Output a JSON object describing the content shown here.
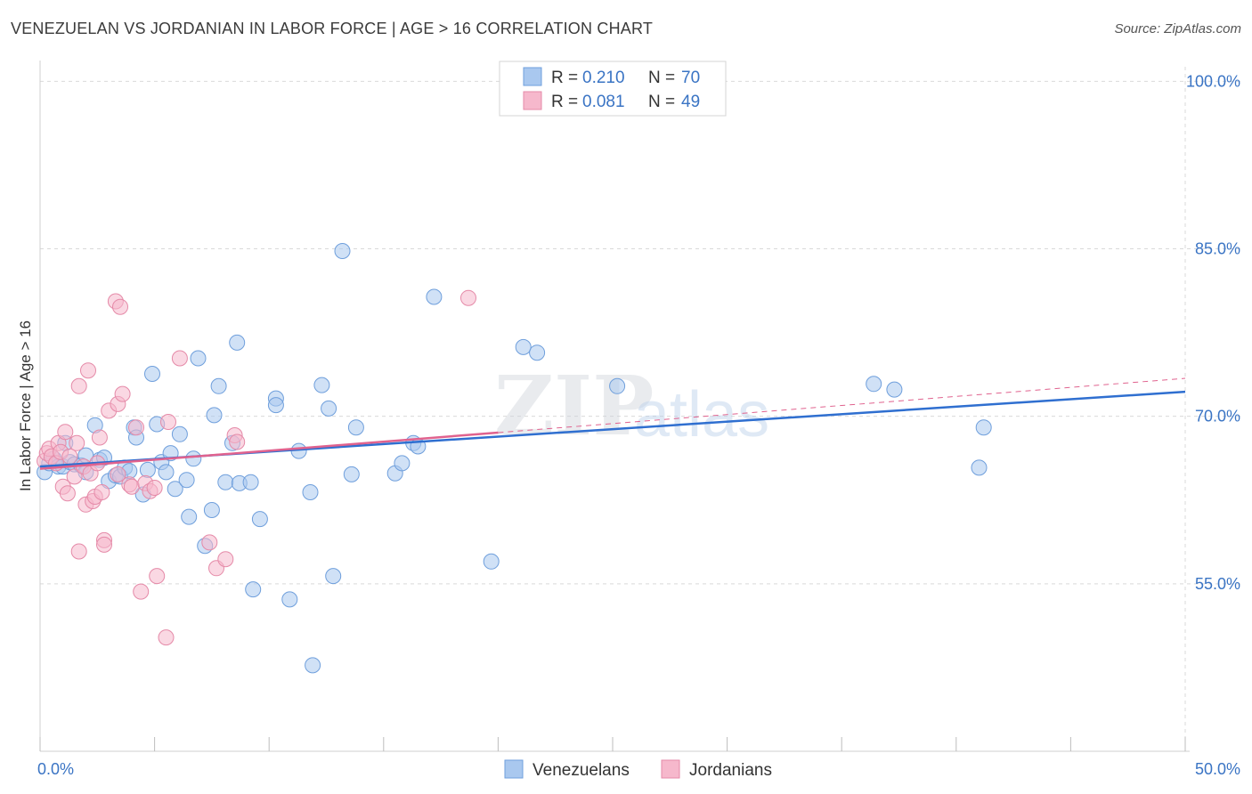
{
  "title": "VENEZUELAN VS JORDANIAN IN LABOR FORCE | AGE > 16 CORRELATION CHART",
  "source": "Source: ZipAtlas.com",
  "watermark": {
    "zip": "ZIP",
    "atlas": "atlas"
  },
  "legend": {
    "venezuelans": {
      "r_label": "R =",
      "r_value": "0.210",
      "n_label": "N =",
      "n_value": "70"
    },
    "jordanians": {
      "r_label": "R =",
      "r_value": "0.081",
      "n_label": "N =",
      "n_value": "49"
    }
  },
  "bottom_legend": {
    "venezuelans": "Venezuelans",
    "jordanians": "Jordanians"
  },
  "colors": {
    "venezuelans_fill": "#a9c8ef",
    "venezuelans_stroke": "#6f9fdc",
    "venezuelans_line": "#2f6fd0",
    "jordanians_fill": "#f6b8cc",
    "jordanians_stroke": "#e58aa8",
    "jordanians_line": "#e0628e",
    "grid": "#d9d9d9",
    "tick_text": "#3a74c4"
  },
  "chart_data": {
    "type": "scatter",
    "title": "VENEZUELAN VS JORDANIAN IN LABOR FORCE | AGE > 16 CORRELATION CHART",
    "xlabel": "",
    "ylabel": "In Labor Force | Age > 16",
    "xlim": [
      0,
      50
    ],
    "ylim": [
      40,
      102.5
    ],
    "x_tick_labels": [
      "0.0%",
      "50.0%"
    ],
    "y_ticks": [
      55,
      70,
      85,
      100
    ],
    "y_tick_labels": [
      "55.0%",
      "70.0%",
      "85.0%",
      "100.0%"
    ],
    "grid": true,
    "series": [
      {
        "name": "Venezuelans",
        "R": 0.21,
        "N": 70,
        "trend": {
          "x": [
            0,
            50
          ],
          "y": [
            65.5,
            72.2
          ]
        },
        "points": [
          [
            0.2,
            65.0
          ],
          [
            0.4,
            65.8
          ],
          [
            0.6,
            66.2
          ],
          [
            0.8,
            65.5
          ],
          [
            1.0,
            65.5
          ],
          [
            1.1,
            67.6
          ],
          [
            1.3,
            65.9
          ],
          [
            1.5,
            65.7
          ],
          [
            1.8,
            65.6
          ],
          [
            2.0,
            66.5
          ],
          [
            2.0,
            65.0
          ],
          [
            2.4,
            69.2
          ],
          [
            2.6,
            66.1
          ],
          [
            2.8,
            66.3
          ],
          [
            3.0,
            64.2
          ],
          [
            3.3,
            64.7
          ],
          [
            3.5,
            64.6
          ],
          [
            3.7,
            65.4
          ],
          [
            3.9,
            65.1
          ],
          [
            4.1,
            69.0
          ],
          [
            4.2,
            68.1
          ],
          [
            4.5,
            63.0
          ],
          [
            4.7,
            65.2
          ],
          [
            4.9,
            73.8
          ],
          [
            5.1,
            69.3
          ],
          [
            5.3,
            65.9
          ],
          [
            5.5,
            65.0
          ],
          [
            5.7,
            66.7
          ],
          [
            5.9,
            63.5
          ],
          [
            6.1,
            68.4
          ],
          [
            6.4,
            64.3
          ],
          [
            6.5,
            61.0
          ],
          [
            6.7,
            66.2
          ],
          [
            6.9,
            75.2
          ],
          [
            7.2,
            58.4
          ],
          [
            7.5,
            61.6
          ],
          [
            7.6,
            70.1
          ],
          [
            7.8,
            72.7
          ],
          [
            8.1,
            64.1
          ],
          [
            8.4,
            67.6
          ],
          [
            8.6,
            76.6
          ],
          [
            8.7,
            64.0
          ],
          [
            9.2,
            64.1
          ],
          [
            9.3,
            54.5
          ],
          [
            9.6,
            60.8
          ],
          [
            10.3,
            71.6
          ],
          [
            10.3,
            71.0
          ],
          [
            10.9,
            53.6
          ],
          [
            11.3,
            66.9
          ],
          [
            11.8,
            63.2
          ],
          [
            11.9,
            47.7
          ],
          [
            12.3,
            72.8
          ],
          [
            12.6,
            70.7
          ],
          [
            12.8,
            55.7
          ],
          [
            13.2,
            84.8
          ],
          [
            13.6,
            64.8
          ],
          [
            13.8,
            69.0
          ],
          [
            15.5,
            64.9
          ],
          [
            15.8,
            65.8
          ],
          [
            16.3,
            67.6
          ],
          [
            16.5,
            67.3
          ],
          [
            17.2,
            80.7
          ],
          [
            19.7,
            57.0
          ],
          [
            21.1,
            76.2
          ],
          [
            21.7,
            75.7
          ],
          [
            25.2,
            72.7
          ],
          [
            36.4,
            72.9
          ],
          [
            37.3,
            72.4
          ],
          [
            41.0,
            65.4
          ],
          [
            41.2,
            69.0
          ]
        ]
      },
      {
        "name": "Jordanians",
        "R": 0.081,
        "N": 49,
        "trend": {
          "x": [
            0,
            50
          ],
          "y": [
            65.3,
            73.4
          ]
        },
        "points": [
          [
            0.2,
            66.0
          ],
          [
            0.3,
            66.7
          ],
          [
            0.4,
            67.1
          ],
          [
            0.5,
            66.4
          ],
          [
            0.7,
            65.8
          ],
          [
            0.8,
            67.6
          ],
          [
            0.9,
            66.8
          ],
          [
            1.0,
            63.7
          ],
          [
            1.1,
            68.6
          ],
          [
            1.2,
            63.1
          ],
          [
            1.3,
            66.4
          ],
          [
            1.5,
            64.6
          ],
          [
            1.6,
            67.6
          ],
          [
            1.7,
            57.9
          ],
          [
            1.7,
            72.7
          ],
          [
            1.9,
            65.5
          ],
          [
            2.0,
            62.1
          ],
          [
            2.1,
            74.1
          ],
          [
            2.2,
            64.9
          ],
          [
            2.3,
            62.4
          ],
          [
            2.4,
            62.8
          ],
          [
            2.5,
            65.8
          ],
          [
            2.6,
            68.1
          ],
          [
            2.7,
            63.2
          ],
          [
            2.8,
            58.9
          ],
          [
            2.8,
            58.5
          ],
          [
            3.0,
            70.5
          ],
          [
            3.3,
            80.3
          ],
          [
            3.4,
            71.1
          ],
          [
            3.4,
            64.8
          ],
          [
            3.5,
            79.8
          ],
          [
            3.6,
            72.0
          ],
          [
            3.9,
            63.9
          ],
          [
            4.0,
            63.7
          ],
          [
            4.2,
            69.0
          ],
          [
            4.4,
            54.3
          ],
          [
            4.6,
            64.0
          ],
          [
            4.8,
            63.3
          ],
          [
            5.0,
            63.6
          ],
          [
            5.1,
            55.7
          ],
          [
            5.5,
            50.2
          ],
          [
            5.6,
            69.5
          ],
          [
            6.1,
            75.2
          ],
          [
            7.4,
            58.7
          ],
          [
            7.7,
            56.4
          ],
          [
            8.1,
            57.2
          ],
          [
            8.5,
            68.3
          ],
          [
            8.6,
            67.7
          ],
          [
            18.7,
            80.6
          ]
        ]
      }
    ]
  }
}
